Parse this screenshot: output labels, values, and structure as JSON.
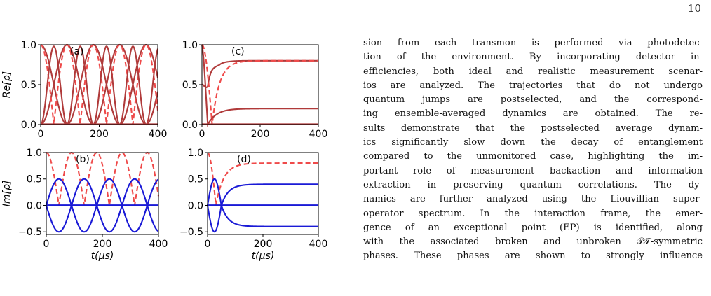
{
  "page": {
    "number": "10"
  },
  "paragraph": {
    "lines": [
      "sion from each transmon is performed via photodetec-",
      "tion of the environment. By incorporating detector in-",
      "efficiencies, both ideal and realistic measurement scenar-",
      "ios are analyzed. The trajectories that do not undergo",
      "quantum jumps are postselected, and the correspond-",
      "ing ensemble-averaged dynamics are obtained. The re-",
      "sults demonstrate that the postselected average dynam-",
      "ics significantly slow down the decay of entanglement",
      "compared to the unmonitored case, highlighting the im-",
      "portant role of measurement backaction and information",
      "extraction in preserving quantum correlations. The dy-",
      "namics are further analyzed using the Liouvillian super-",
      "operator spectrum. In the interaction frame, the emer-",
      "gence of an exceptional point (EP) is identified, along",
      "with the associated broken and unbroken 𝒫𝒯-symmetric",
      "phases. These phases are shown to strongly influence"
    ]
  },
  "chart_data": [
    {
      "id": "a",
      "type": "line",
      "panel_label": "(a)",
      "ylabel": "Re[ρ]",
      "xlabel": "",
      "xlim": [
        0,
        400
      ],
      "ylim": [
        0,
        1
      ],
      "xticks": [
        "0",
        "200",
        "400"
      ],
      "yticks": [
        "0.0",
        "0.5",
        "1.0"
      ],
      "colors": {
        "dark": "#b03a3a",
        "dashed": "#ef4a4a"
      }
    },
    {
      "id": "b",
      "type": "line",
      "panel_label": "(b)",
      "ylabel": "Im[ρ]",
      "xlabel": "t(μs)",
      "xlim": [
        0,
        400
      ],
      "ylim": [
        -0.55,
        1.0
      ],
      "xticks": [
        "0",
        "200",
        "400"
      ],
      "yticks": [
        "−0.5",
        "0.0",
        "0.5",
        "1.0"
      ],
      "colors": {
        "blue": "#1a1ad6",
        "dashed": "#ef4a4a"
      }
    },
    {
      "id": "c",
      "type": "line",
      "panel_label": "(c)",
      "ylabel": "",
      "xlabel": "",
      "xlim": [
        0,
        400
      ],
      "ylim": [
        0,
        1
      ],
      "xticks": [
        "0",
        "200",
        "400"
      ],
      "yticks": [
        "0.0",
        "0.5",
        "1.0"
      ],
      "colors": {
        "dark": "#b03a3a",
        "dashed": "#ef4a4a"
      }
    },
    {
      "id": "d",
      "type": "line",
      "panel_label": "(d)",
      "ylabel": "",
      "xlabel": "t(μs)",
      "xlim": [
        0,
        400
      ],
      "ylim": [
        -0.55,
        1.0
      ],
      "xticks": [
        "0",
        "200",
        "400"
      ],
      "yticks": [
        "−0.5",
        "0.0",
        "0.5",
        "1.0"
      ],
      "colors": {
        "blue": "#1a1ad6",
        "dashed": "#ef4a4a"
      }
    }
  ]
}
